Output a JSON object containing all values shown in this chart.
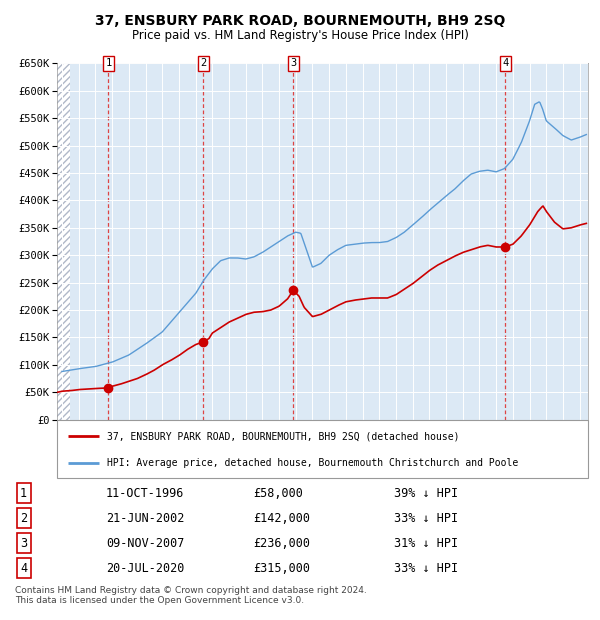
{
  "title": "37, ENSBURY PARK ROAD, BOURNEMOUTH, BH9 2SQ",
  "subtitle": "Price paid vs. HM Land Registry's House Price Index (HPI)",
  "plot_bg_color": "#dce9f5",
  "hatch_color": "#c0cfe0",
  "ylim": [
    0,
    650000
  ],
  "ytick_vals": [
    0,
    50000,
    100000,
    150000,
    200000,
    250000,
    300000,
    350000,
    400000,
    450000,
    500000,
    550000,
    600000,
    650000
  ],
  "ytick_labels": [
    "£0",
    "£50K",
    "£100K",
    "£150K",
    "£200K",
    "£250K",
    "£300K",
    "£350K",
    "£400K",
    "£450K",
    "£500K",
    "£550K",
    "£600K",
    "£650K"
  ],
  "xlim_start": 1993.7,
  "xlim_end": 2025.5,
  "hatch_end": 1994.5,
  "transaction_dates": [
    1996.78,
    2002.47,
    2007.85,
    2020.55
  ],
  "transaction_prices": [
    58000,
    142000,
    236000,
    315000
  ],
  "transaction_labels": [
    "1",
    "2",
    "3",
    "4"
  ],
  "red_line_color": "#cc0000",
  "blue_line_color": "#5b9bd5",
  "dashed_line_color": "#dd4444",
  "legend_entries": [
    "37, ENSBURY PARK ROAD, BOURNEMOUTH, BH9 2SQ (detached house)",
    "HPI: Average price, detached house, Bournemouth Christchurch and Poole"
  ],
  "table_rows": [
    [
      "1",
      "11-OCT-1996",
      "£58,000",
      "39% ↓ HPI"
    ],
    [
      "2",
      "21-JUN-2002",
      "£142,000",
      "33% ↓ HPI"
    ],
    [
      "3",
      "09-NOV-2007",
      "£236,000",
      "31% ↓ HPI"
    ],
    [
      "4",
      "20-JUL-2020",
      "£315,000",
      "33% ↓ HPI"
    ]
  ],
  "footnote": "Contains HM Land Registry data © Crown copyright and database right 2024.\nThis data is licensed under the Open Government Licence v3.0."
}
